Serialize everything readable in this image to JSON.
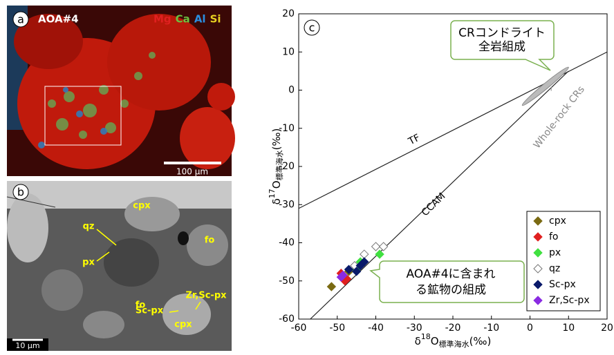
{
  "panel_a": {
    "label": "a",
    "title": "AOA#4",
    "elements": [
      {
        "text": "Mg",
        "color": "#e02020"
      },
      {
        "text": "Ca",
        "color": "#6cc040"
      },
      {
        "text": "Al",
        "color": "#2a8fe0"
      },
      {
        "text": "Si",
        "color": "#e8d020"
      }
    ],
    "scale": "100 μm"
  },
  "panel_b": {
    "label": "b",
    "scale": "10 μm",
    "labels": [
      "cpx",
      "fo",
      "qz",
      "px",
      "fo",
      "Zr,Sc-px",
      "Sc-px",
      "cpx"
    ]
  },
  "chart_data": {
    "type": "scatter",
    "label": "c",
    "xlabel": {
      "delta": "δ",
      "mass": "18",
      "element": "O",
      "reference": "標準海水",
      "unit": "(‰)"
    },
    "ylabel": {
      "delta": "δ",
      "mass": "17",
      "element": "O",
      "reference": "標準海水",
      "unit": "(‰)"
    },
    "xlim": [
      -60,
      20
    ],
    "ylim": [
      -60,
      20
    ],
    "xticks": [
      -60,
      -50,
      -40,
      -30,
      -20,
      -10,
      0,
      10,
      20
    ],
    "yticks": [
      -60,
      -50,
      -40,
      -30,
      -20,
      -10,
      0,
      10,
      20
    ],
    "lines": [
      {
        "name": "TF",
        "x": [
          -60,
          20
        ],
        "y": [
          -31,
          10
        ]
      },
      {
        "name": "CCAM",
        "x": [
          -57,
          10
        ],
        "y": [
          -60,
          5
        ]
      }
    ],
    "region": {
      "name": "Whole-rock CRs",
      "x": [
        -2,
        10
      ],
      "y": [
        -4,
        6
      ]
    },
    "series": [
      {
        "name": "cpx",
        "color": "#7a6a12",
        "x": [
          -51.5,
          -47
        ],
        "values": [
          -51.5,
          -47.5
        ]
      },
      {
        "name": "fo",
        "color": "#e02020",
        "x": [
          -49,
          -48,
          -47.5
        ],
        "values": [
          -48,
          -50,
          -49.5
        ]
      },
      {
        "name": "px",
        "color": "#40e040",
        "x": [
          -45,
          -44,
          -39
        ],
        "values": [
          -47,
          -45,
          -43
        ]
      },
      {
        "name": "qz",
        "color": "#ffffff",
        "x": [
          -43,
          -40,
          -38,
          -45.5
        ],
        "values": [
          -43,
          -41,
          -41,
          -46
        ]
      },
      {
        "name": "Sc-px",
        "color": "#0a1a6a",
        "x": [
          -47,
          -45,
          -43,
          -44
        ],
        "values": [
          -47,
          -47.5,
          -45,
          -46
        ]
      },
      {
        "name": "Zr,Sc-px",
        "color": "#8a2be2",
        "x": [
          -49,
          -48.5
        ],
        "values": [
          -49,
          -48.5
        ]
      }
    ],
    "callouts": [
      [
        "CRコンドライト",
        "全岩組成"
      ],
      [
        "AOA#4に含まれ",
        "る鉱物の組成"
      ]
    ]
  }
}
